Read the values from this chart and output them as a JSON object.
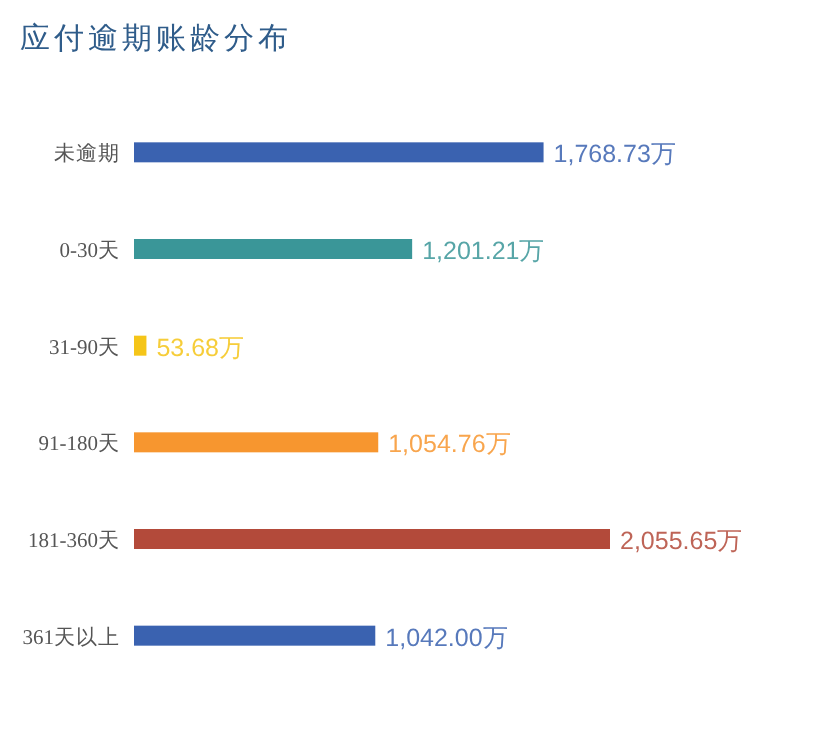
{
  "chart_data": {
    "type": "bar",
    "orientation": "horizontal",
    "title": "应付逾期账龄分布",
    "categories": [
      "未逾期",
      "0-30天",
      "31-90天",
      "91-180天",
      "181-360天",
      "361天以上"
    ],
    "values": [
      1768.73,
      1201.21,
      53.68,
      1054.76,
      2055.65,
      1042.0
    ],
    "colors": [
      "#3a62b0",
      "#3a9698",
      "#f5c518",
      "#f7962f",
      "#b34a3a",
      "#3a62b0"
    ],
    "value_labels": [
      "1,768.73万",
      "1,201.21万",
      "53.68万",
      "1,054.76万",
      "2,055.65万",
      "1,042.00万"
    ]
  }
}
